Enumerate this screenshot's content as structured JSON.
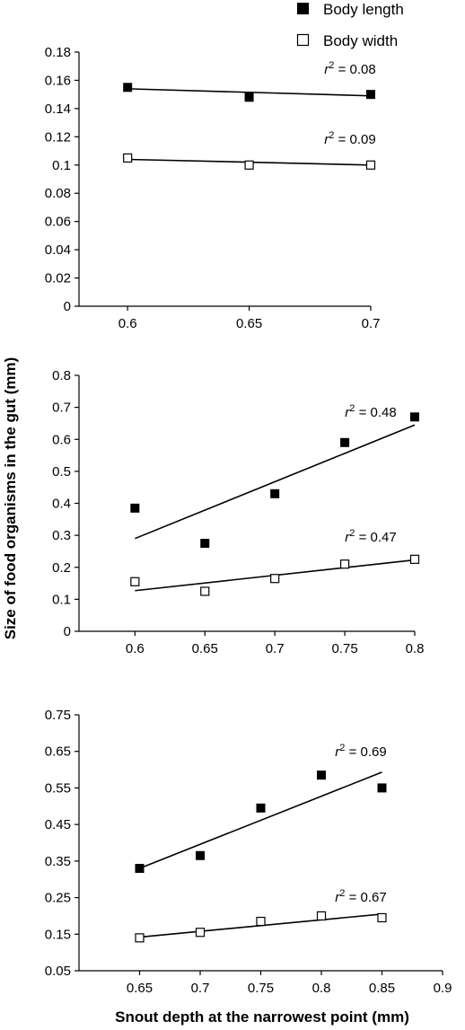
{
  "figure": {
    "ylabel": "Size of food organisms in the gut (mm)",
    "xlabel": "Snout depth at the narrowest point (mm)",
    "legend": [
      {
        "label": "Body length",
        "marker": "filled-square"
      },
      {
        "label": "Body width",
        "marker": "open-square"
      }
    ]
  },
  "chart_data": [
    {
      "type": "scatter",
      "x_ticks": [
        0.6,
        0.65,
        0.7
      ],
      "y_ticks": [
        0,
        0.02,
        0.04,
        0.06,
        0.08,
        0.1,
        0.12,
        0.14,
        0.16,
        0.18
      ],
      "y_tick_labels": [
        "0",
        "0.02",
        "0.04",
        "0.06",
        "0.08",
        "0.1",
        "0.12",
        "0.14",
        "0.16",
        "0.18"
      ],
      "x_tick_labels": [
        "0.6",
        "0.65",
        "0.7"
      ],
      "xlim": [
        0.58,
        0.7
      ],
      "ylim": [
        0,
        0.18
      ],
      "series": [
        {
          "name": "Body length",
          "marker": "filled",
          "x": [
            0.6,
            0.65,
            0.7
          ],
          "y": [
            0.155,
            0.148,
            0.15
          ],
          "trend": {
            "x": [
              0.6,
              0.7
            ],
            "y": [
              0.154,
              0.149
            ]
          },
          "r2_label": "= 0.08"
        },
        {
          "name": "Body width",
          "marker": "open",
          "x": [
            0.6,
            0.65,
            0.7
          ],
          "y": [
            0.105,
            0.1,
            0.1
          ],
          "trend": {
            "x": [
              0.6,
              0.7
            ],
            "y": [
              0.104,
              0.1
            ]
          },
          "r2_label": "= 0.09"
        }
      ]
    },
    {
      "type": "scatter",
      "x_ticks": [
        0.6,
        0.65,
        0.7,
        0.75,
        0.8
      ],
      "y_ticks": [
        0,
        0.1,
        0.2,
        0.3,
        0.4,
        0.5,
        0.6,
        0.7,
        0.8
      ],
      "y_tick_labels": [
        "0",
        "0.1",
        "0.2",
        "0.3",
        "0.4",
        "0.5",
        "0.6",
        "0.7",
        "0.8"
      ],
      "x_tick_labels": [
        "0.6",
        "0.65",
        "0.7",
        "0.75",
        "0.8"
      ],
      "xlim": [
        0.56,
        0.8
      ],
      "ylim": [
        0,
        0.8
      ],
      "series": [
        {
          "name": "Body length",
          "marker": "filled",
          "x": [
            0.6,
            0.65,
            0.7,
            0.75,
            0.8
          ],
          "y": [
            0.385,
            0.275,
            0.43,
            0.59,
            0.67
          ],
          "trend": {
            "x": [
              0.6,
              0.8
            ],
            "y": [
              0.29,
              0.645
            ]
          },
          "r2_label": "= 0.48"
        },
        {
          "name": "Body width",
          "marker": "open",
          "x": [
            0.6,
            0.65,
            0.7,
            0.75,
            0.8
          ],
          "y": [
            0.155,
            0.125,
            0.165,
            0.21,
            0.225
          ],
          "trend": {
            "x": [
              0.6,
              0.8
            ],
            "y": [
              0.127,
              0.223
            ]
          },
          "r2_label": "= 0.47"
        }
      ]
    },
    {
      "type": "scatter",
      "x_ticks": [
        0.65,
        0.7,
        0.75,
        0.8,
        0.85,
        0.9
      ],
      "y_ticks": [
        0.05,
        0.15,
        0.25,
        0.35,
        0.45,
        0.55,
        0.65,
        0.75
      ],
      "y_tick_labels": [
        "0.05",
        "0.15",
        "0.25",
        "0.35",
        "0.45",
        "0.55",
        "0.65",
        "0.75"
      ],
      "x_tick_labels": [
        "0.65",
        "0.7",
        "0.75",
        "0.8",
        "0.85",
        "0.9"
      ],
      "xlim": [
        0.6,
        0.9
      ],
      "ylim": [
        0.05,
        0.75
      ],
      "series": [
        {
          "name": "Body length",
          "marker": "filled",
          "x": [
            0.65,
            0.7,
            0.75,
            0.8,
            0.85
          ],
          "y": [
            0.33,
            0.365,
            0.495,
            0.585,
            0.55
          ],
          "trend": {
            "x": [
              0.65,
              0.85
            ],
            "y": [
              0.33,
              0.593
            ]
          },
          "r2_label": "= 0.69"
        },
        {
          "name": "Body width",
          "marker": "open",
          "x": [
            0.65,
            0.7,
            0.75,
            0.8,
            0.85
          ],
          "y": [
            0.14,
            0.155,
            0.185,
            0.2,
            0.195
          ],
          "trend": {
            "x": [
              0.65,
              0.85
            ],
            "y": [
              0.142,
              0.205
            ]
          },
          "r2_label": "= 0.67"
        }
      ]
    }
  ]
}
